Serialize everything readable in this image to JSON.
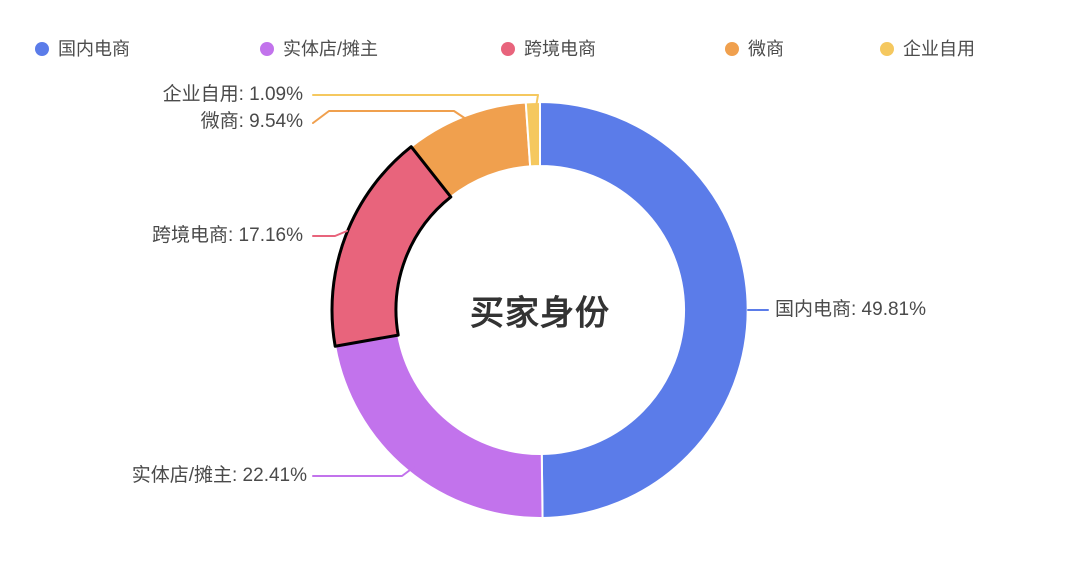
{
  "chart_data": {
    "type": "pie",
    "subtype": "donut",
    "title": "买家身份",
    "unit": "%",
    "legend_position": "top",
    "clockwise": true,
    "start_angle": "12-oclock",
    "background_color": "#ffffff",
    "legend": [
      "国内电商",
      "实体店/摊主",
      "跨境电商",
      "微商",
      "企业自用"
    ],
    "series": [
      {
        "name": "国内电商",
        "value": 49.81,
        "color": "#5b7ce9",
        "label": "国内电商: 49.81%",
        "emphasized": false
      },
      {
        "name": "实体店/摊主",
        "value": 22.41,
        "color": "#c273ec",
        "label": "实体店/摊主: 22.41%",
        "emphasized": false
      },
      {
        "name": "跨境电商",
        "value": 17.16,
        "color": "#e8647c",
        "label": "跨境电商: 17.16%",
        "emphasized": true,
        "emphasis_border_color": "#000000"
      },
      {
        "name": "微商",
        "value": 9.54,
        "color": "#f0a04e",
        "label": "微商: 9.54%",
        "emphasized": false
      },
      {
        "name": "企业自用",
        "value": 1.09,
        "color": "#f5c85f",
        "label": "企业自用: 1.09%",
        "emphasized": false
      }
    ],
    "slice_border_color": "#ffffff",
    "label_text_color": "#4a4a4a",
    "legend_text_color": "#4c4c4c",
    "title_text_color": "#333333"
  }
}
